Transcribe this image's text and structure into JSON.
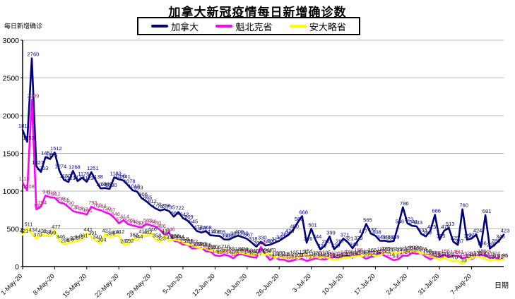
{
  "title": "加拿大新冠疫情每日新增确诊数",
  "legend": {
    "items": [
      {
        "label": "加拿大",
        "color": "#000080"
      },
      {
        "label": "魁北克省",
        "color": "#FF00FF"
      },
      {
        "label": "安大略省",
        "color": "#FFFF00"
      }
    ]
  },
  "y_axis": {
    "title": "每日新增确诊",
    "ticks": [
      0,
      500,
      1000,
      1500,
      2000,
      2500,
      3000
    ]
  },
  "x_axis": {
    "title": "日期",
    "tick_every_days": 7,
    "tick_labels": [
      "1-May-20",
      "8-May-20",
      "15-May-20",
      "22-May-20",
      "29-May-20",
      "5-Jun-20",
      "12-Jun-20",
      "19-Jun-20",
      "26-Jun-20",
      "3-Jul-20",
      "10-Jul-20",
      "17-Jul-20",
      "24-Jul-20",
      "31-Jul-20",
      "7-Aug-20"
    ]
  },
  "chart_data": {
    "type": "line",
    "title": "加拿大新冠疫情每日新增确诊数",
    "xlabel": "日期",
    "ylabel": "每日新增确诊",
    "ylim": [
      0,
      3000
    ],
    "grid": true,
    "legend_position": "top",
    "x": [
      "1-May-20",
      "2-May-20",
      "3-May-20",
      "4-May-20",
      "5-May-20",
      "6-May-20",
      "7-May-20",
      "8-May-20",
      "9-May-20",
      "10-May-20",
      "11-May-20",
      "12-May-20",
      "13-May-20",
      "14-May-20",
      "15-May-20",
      "16-May-20",
      "17-May-20",
      "18-May-20",
      "19-May-20",
      "20-May-20",
      "21-May-20",
      "22-May-20",
      "23-May-20",
      "24-May-20",
      "25-May-20",
      "26-May-20",
      "27-May-20",
      "28-May-20",
      "29-May-20",
      "30-May-20",
      "31-May-20",
      "1-Jun-20",
      "2-Jun-20",
      "3-Jun-20",
      "4-Jun-20",
      "5-Jun-20",
      "6-Jun-20",
      "7-Jun-20",
      "8-Jun-20",
      "9-Jun-20",
      "10-Jun-20",
      "11-Jun-20",
      "12-Jun-20",
      "13-Jun-20",
      "14-Jun-20",
      "15-Jun-20",
      "16-Jun-20",
      "17-Jun-20",
      "18-Jun-20",
      "19-Jun-20",
      "20-Jun-20",
      "21-Jun-20",
      "22-Jun-20",
      "23-Jun-20",
      "24-Jun-20",
      "25-Jun-20",
      "26-Jun-20",
      "27-Jun-20",
      "28-Jun-20",
      "29-Jun-20",
      "30-Jun-20",
      "1-Jul-20",
      "2-Jul-20",
      "3-Jul-20",
      "4-Jul-20",
      "5-Jul-20",
      "6-Jul-20",
      "7-Jul-20",
      "8-Jul-20",
      "9-Jul-20",
      "10-Jul-20",
      "11-Jul-20",
      "12-Jul-20",
      "13-Jul-20",
      "14-Jul-20",
      "15-Jul-20",
      "16-Jul-20",
      "17-Jul-20",
      "18-Jul-20",
      "19-Jul-20",
      "20-Jul-20",
      "21-Jul-20",
      "22-Jul-20",
      "23-Jul-20",
      "24-Jul-20",
      "25-Jul-20",
      "26-Jul-20",
      "27-Jul-20",
      "28-Jul-20",
      "29-Jul-20",
      "30-Jul-20",
      "31-Jul-20",
      "1-Aug-20",
      "2-Aug-20",
      "3-Aug-20",
      "4-Aug-20",
      "5-Aug-20",
      "6-Aug-20",
      "7-Aug-20",
      "8-Aug-20",
      "9-Aug-20",
      "10-Aug-20",
      "11-Aug-20",
      "12-Aug-20",
      "13-Aug-20",
      "14-Aug-20"
    ],
    "series": [
      {
        "name": "加拿大",
        "color": "#000080",
        "label_color": "#000080",
        "values": [
          1811,
          1653,
          2760,
          1327,
          1253,
          1451,
          1425,
          1512,
          1274,
          1150,
          1121,
          1268,
          1133,
          1176,
          1123,
          1251,
          1138,
          1036,
          1040,
          1030,
          1182,
          1156,
          1141,
          1078,
          1012,
          993,
          906,
          865,
          812,
          770,
          743,
          758,
          735,
          661,
          722,
          642,
          609,
          545,
          472,
          451,
          468,
          415,
          409,
          405,
          360,
          358,
          386,
          409,
          390,
          367,
          318,
          264,
          330,
          279,
          290,
          315,
          340,
          380,
          420,
          480,
          580,
          668,
          316,
          501,
          344,
          226,
          280,
          399,
          230,
          287,
          371,
          321,
          243,
          329,
          417,
          565,
          437,
          408,
          341,
          343,
          330,
          339,
          546,
          786,
          573,
          541,
          533,
          433,
          399,
          475,
          686,
          355,
          475,
          513,
          329,
          287,
          760,
          356,
          371,
          424,
          256,
          681,
          239,
          289,
          345,
          423
        ]
      },
      {
        "name": "魁北克省",
        "color": "#FF00FF",
        "label_color": "#993366",
        "values": [
          1110,
          1008,
          2209,
          758,
          794,
          941,
          919,
          912,
          850,
          836,
          790,
          736,
          718,
          707,
          691,
          793,
          762,
          748,
          720,
          697,
          646,
          573,
          614,
          563,
          546,
          530,
          519,
          563,
          546,
          530,
          486,
          419,
          446,
          344,
          328,
          291,
          289,
          239,
          243,
          251,
          203,
          197,
          148,
          138,
          158,
          142,
          110,
          161,
          163,
          142,
          125,
          117,
          257,
          157,
          88,
          124,
          94,
          92,
          68,
          81,
          100,
          102,
          75,
          92,
          108,
          100,
          94,
          111,
          124,
          118,
          142,
          146,
          116,
          166,
          135,
          103,
          130,
          138,
          180,
          144,
          114,
          84,
          99,
          145,
          142,
          181,
          171,
          178,
          129,
          96,
          133,
          126,
          156,
          123,
          145,
          141,
          111,
          126,
          98,
          133,
          156,
          145,
          115,
          124,
          91,
          96
        ]
      },
      {
        "name": "安大略省",
        "color": "#FFFF00",
        "label_color": "#1a1a1a",
        "values": [
          421,
          511,
          434,
          370,
          421,
          412,
          399,
          477,
          346,
          294,
          308,
          325,
          341,
          361,
          441,
          391,
          340,
          304,
          427,
          386,
          404,
          412,
          287,
          292,
          368,
          344,
          415,
          402,
          446,
          358,
          323,
          404,
          338,
          356,
          344,
          318,
          291,
          277,
          251,
          243,
          236,
          210,
          206,
          175,
          216,
          189,
          161,
          184,
          178,
          163,
          149,
          157,
          165,
          154,
          170,
          111,
          130,
          116,
          112,
          135,
          103,
          138,
          154,
          116,
          130,
          112,
          135,
          103,
          88,
          95,
          111,
          119,
          124,
          143,
          135,
          148,
          166,
          135,
          153,
          185,
          183,
          171,
          184,
          178,
          195,
          203,
          195,
          176,
          158,
          134,
          116,
          89,
          116,
          88,
          70,
          79,
          33,
          95,
          111,
          131,
          124,
          98,
          76,
          91,
          81,
          95
        ]
      }
    ]
  }
}
